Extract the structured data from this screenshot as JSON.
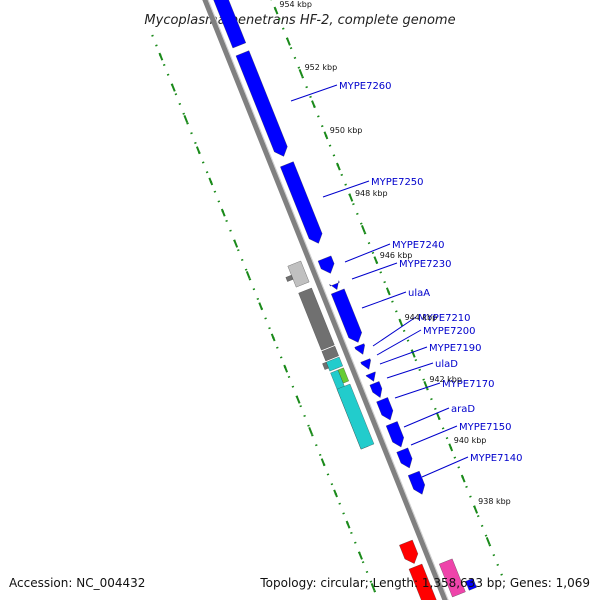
{
  "title": "Mycoplasma penetrans HF-2, complete genome",
  "footer": {
    "accession": "Accession: NC_004432",
    "summary": "Topology: circular; Length: 1,358,633 bp; Genes: 1,069"
  },
  "colors": {
    "backbone": "#808080",
    "tick": "#1a8a1a",
    "gene_forward": "#0000ff",
    "gene_label": "#0000cc",
    "gene_grey_light": "#c0c0c0",
    "gene_grey_dark": "#707070",
    "gene_cyan": "#22cccc",
    "gene_green": "#66cc33",
    "gene_red": "#ff0000",
    "gene_pink": "#ee44aa"
  },
  "kbp_ticks": [
    {
      "label": "954 kbp"
    },
    {
      "label": "952 kbp"
    },
    {
      "label": "950 kbp"
    },
    {
      "label": "948 kbp"
    },
    {
      "label": "946 kbp"
    },
    {
      "label": "944 kbp"
    },
    {
      "label": "942 kbp"
    },
    {
      "label": "940 kbp"
    },
    {
      "label": "938 kbp"
    }
  ],
  "genes": [
    {
      "label": "MYPE7260"
    },
    {
      "label": "MYPE7250"
    },
    {
      "label": "MYPE7240"
    },
    {
      "label": "MYPE7230"
    },
    {
      "label": "ulaA"
    },
    {
      "label": "MYPE7210"
    },
    {
      "label": "MYPE7200"
    },
    {
      "label": "MYPE7190"
    },
    {
      "label": "ulaD"
    },
    {
      "label": "MYPE7170"
    },
    {
      "label": "araD"
    },
    {
      "label": "MYPE7150"
    },
    {
      "label": "MYPE7140"
    }
  ]
}
